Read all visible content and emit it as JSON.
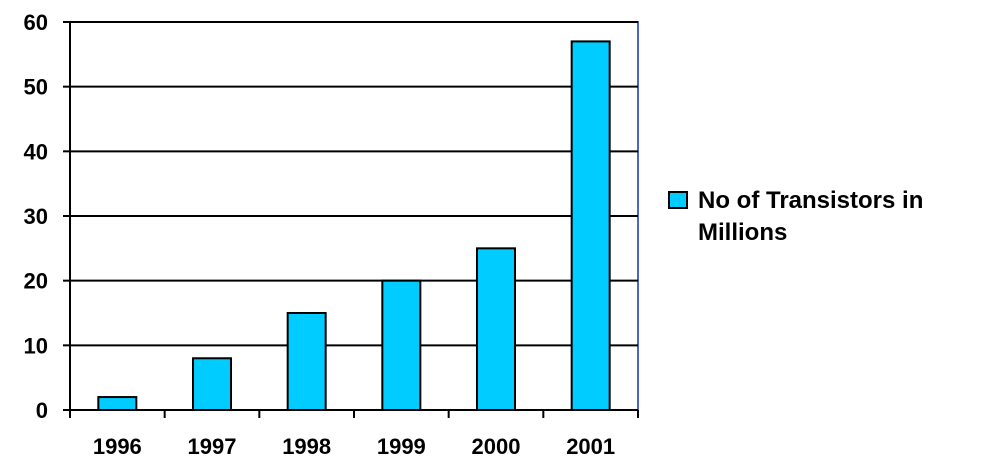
{
  "chart_data": {
    "type": "bar",
    "categories": [
      "1996",
      "1997",
      "1998",
      "1999",
      "2000",
      "2001"
    ],
    "series": [
      {
        "name": "No of Transistors in Millions",
        "values": [
          2,
          8,
          15,
          20,
          25,
          57
        ]
      }
    ],
    "y_ticks": [
      "0",
      "10",
      "20",
      "30",
      "40",
      "50",
      "60"
    ],
    "ylim": [
      0,
      60
    ],
    "grid": true,
    "legend_position": "right",
    "colors": {
      "bar": "#00ccff",
      "bar_border": "#000000",
      "plot_border": "#4a66cc",
      "grid": "#000000"
    }
  }
}
